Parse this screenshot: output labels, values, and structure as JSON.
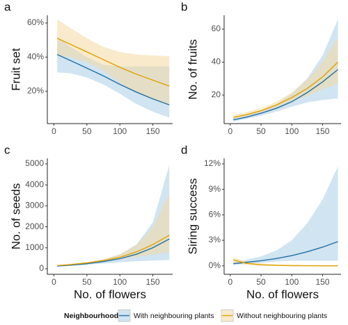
{
  "legend": {
    "title": "Neighbourhood",
    "entries": [
      {
        "name": "With neighbouring plants",
        "color": "#1f6fa5",
        "band_color": "#a9cde6"
      },
      {
        "name": "Without neighbouring plants",
        "color": "#e0a100",
        "band_color": "#f3d9a0"
      }
    ]
  },
  "chart_data": [
    {
      "type": "line",
      "panel_label": "a",
      "ylabel": "Fruit set",
      "x": [
        5,
        25,
        50,
        75,
        100,
        125,
        150,
        175
      ],
      "xlim": [
        -10,
        180
      ],
      "xticks": [
        0,
        50,
        100,
        150
      ],
      "ylim": [
        1,
        64.5
      ],
      "yticks": [
        {
          "value": 20,
          "label": "20%"
        },
        {
          "value": 40,
          "label": "40%"
        },
        {
          "value": 60,
          "label": "60%"
        }
      ],
      "series": [
        {
          "values": [
            41.5,
            38,
            33.5,
            29,
            24,
            19.5,
            15.5,
            12
          ],
          "lower": [
            31,
            30.5,
            28,
            24,
            18.5,
            12.5,
            8,
            4.5
          ],
          "upper": [
            52,
            46,
            40,
            35.5,
            34.5,
            34.5,
            34.5,
            34.5
          ]
        },
        {
          "values": [
            51,
            47.5,
            43,
            38.5,
            34,
            30,
            26.5,
            23
          ],
          "lower": [
            41,
            40,
            37,
            32,
            25,
            19,
            15,
            12
          ],
          "upper": [
            62,
            57,
            51,
            46,
            43,
            41.5,
            41,
            40.5
          ]
        }
      ]
    },
    {
      "type": "line",
      "panel_label": "b",
      "ylabel": "No. of fruits",
      "x": [
        5,
        25,
        50,
        75,
        100,
        125,
        150,
        175
      ],
      "xlim": [
        -10,
        180
      ],
      "xticks": [
        0,
        50,
        100,
        150
      ],
      "ylim": [
        2.7,
        68.4
      ],
      "yticks": [
        20,
        40,
        60
      ],
      "series": [
        {
          "values": [
            5,
            6.5,
            9,
            12,
            16,
            21.5,
            28,
            35.5
          ],
          "lower": [
            4,
            5.5,
            7.5,
            10,
            13,
            15.5,
            17,
            18
          ],
          "upper": [
            6,
            7.5,
            10.5,
            14.5,
            21,
            30,
            44,
            66
          ]
        },
        {
          "values": [
            6.5,
            8,
            10.5,
            14,
            18.5,
            24,
            31,
            40
          ],
          "lower": [
            5.5,
            7,
            9.5,
            12.5,
            16,
            19.5,
            23.5,
            27
          ],
          "upper": [
            8,
            9.5,
            12,
            16,
            21.5,
            29.5,
            40,
            55
          ]
        }
      ]
    },
    {
      "type": "line",
      "panel_label": "c",
      "ylabel": "No. of seeds",
      "xlabel": "No. of flowers",
      "x": [
        5,
        25,
        50,
        75,
        100,
        125,
        150,
        175
      ],
      "xlim": [
        -10,
        180
      ],
      "xticks": [
        0,
        50,
        100,
        150
      ],
      "ylim": [
        -265,
        5265
      ],
      "yticks": [
        0,
        1000,
        2000,
        3000,
        4000,
        5000
      ],
      "series": [
        {
          "values": [
            130,
            170,
            240,
            340,
            480,
            690,
            1000,
            1420
          ],
          "lower": [
            100,
            140,
            190,
            250,
            310,
            360,
            390,
            420
          ],
          "upper": [
            150,
            200,
            290,
            430,
            680,
            1150,
            2200,
            4950
          ]
        },
        {
          "values": [
            150,
            200,
            280,
            390,
            550,
            800,
            1150,
            1600
          ],
          "lower": [
            130,
            175,
            245,
            330,
            440,
            560,
            680,
            800
          ],
          "upper": [
            170,
            230,
            320,
            460,
            700,
            1120,
            1950,
            3550
          ]
        }
      ]
    },
    {
      "type": "line",
      "panel_label": "d",
      "ylabel": "Siring success",
      "xlabel": "No. of flowers",
      "x": [
        5,
        25,
        50,
        75,
        100,
        125,
        150,
        175
      ],
      "xlim": [
        -10,
        180
      ],
      "xticks": [
        0,
        50,
        100,
        150
      ],
      "ylim": [
        -1,
        12.65
      ],
      "yticks": [
        {
          "value": 0,
          "label": "0%"
        },
        {
          "value": 3,
          "label": "3%"
        },
        {
          "value": 6,
          "label": "6%"
        },
        {
          "value": 9,
          "label": "9%"
        },
        {
          "value": 12,
          "label": "12%"
        }
      ],
      "series": [
        {
          "values": [
            0.25,
            0.4,
            0.6,
            0.85,
            1.2,
            1.65,
            2.2,
            2.85
          ],
          "lower": [
            0.1,
            0.2,
            0.35,
            0.5,
            0.6,
            0.6,
            0.6,
            0.6
          ],
          "upper": [
            0.45,
            0.7,
            1.1,
            1.8,
            3,
            5,
            7.8,
            11.7
          ]
        },
        {
          "values": [
            0.7,
            0.3,
            0.12,
            0.05,
            0.02,
            0.01,
            0,
            0
          ],
          "lower": [
            0.35,
            0.12,
            0.03,
            0,
            0,
            0,
            0,
            0
          ],
          "upper": [
            1,
            0.55,
            0.3,
            0.2,
            0.15,
            0.1,
            0.1,
            0.1
          ]
        }
      ]
    }
  ]
}
